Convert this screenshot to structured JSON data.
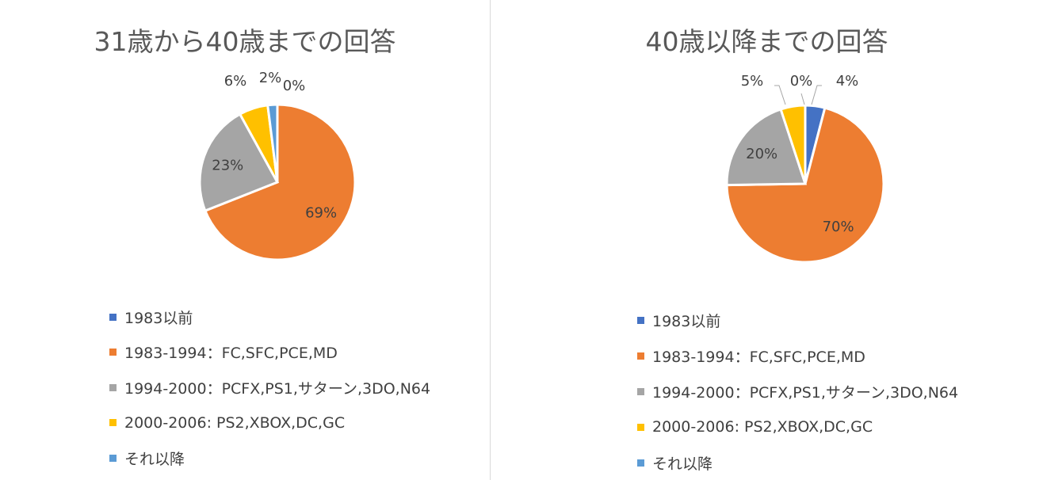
{
  "colors": {
    "1983以前": "#4472c4",
    "1983-1994": "#ed7d31",
    "1994-2000": "#a5a5a5",
    "2000-2006": "#ffc000",
    "later": "#5b9bd5"
  },
  "legend_labels": [
    "1983以前",
    "1983-1994：FC,SFC,PCE,MD",
    "1994-2000：PCFX,PS1,サターン,3DO,N64",
    "2000-2006: PS2,XBOX,DC,GC",
    "それ以降"
  ],
  "chart_data": [
    {
      "type": "pie",
      "title": "31歳から40歳までの回答",
      "categories": [
        "1983以前",
        "1983-1994：FC,SFC,PCE,MD",
        "1994-2000：PCFX,PS1,サターン,3DO,N64",
        "2000-2006: PS2,XBOX,DC,GC",
        "それ以降"
      ],
      "values": [
        0,
        69,
        23,
        6,
        2
      ],
      "data_labels": [
        "0%",
        "69%",
        "23%",
        "6%",
        "2%"
      ],
      "legend_position": "bottom"
    },
    {
      "type": "pie",
      "title": "40歳以降までの回答",
      "categories": [
        "1983以前",
        "1983-1994：FC,SFC,PCE,MD",
        "1994-2000：PCFX,PS1,サターン,3DO,N64",
        "2000-2006: PS2,XBOX,DC,GC",
        "それ以降"
      ],
      "values": [
        4,
        70,
        20,
        5,
        0
      ],
      "data_labels": [
        "4%",
        "70%",
        "20%",
        "5%",
        "0%"
      ],
      "legend_position": "bottom"
    }
  ]
}
